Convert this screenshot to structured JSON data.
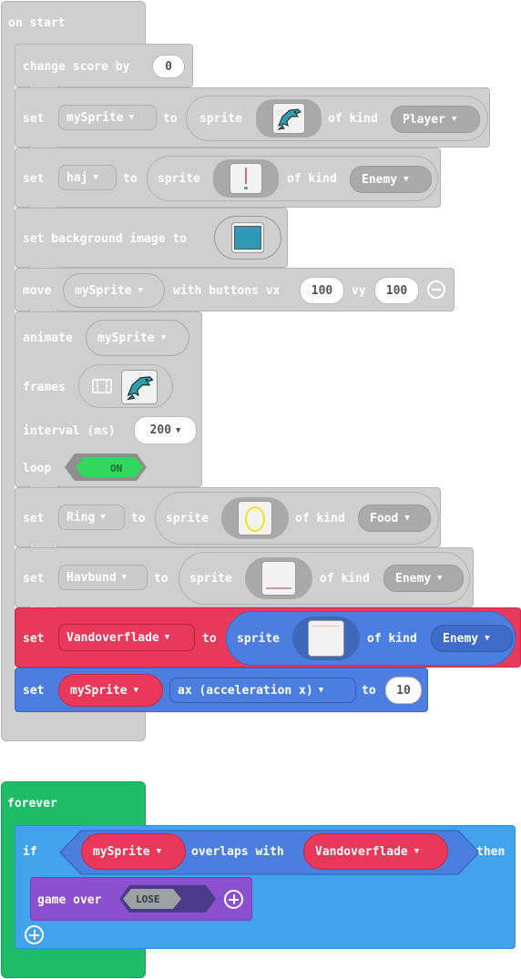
{
  "on_start": {
    "label": "on start",
    "change_score": {
      "label": "change score by",
      "value": "0"
    },
    "set_mysprite": {
      "set": "set",
      "var": "mySprite",
      "to": "to",
      "sprite": "sprite",
      "of_kind": "of kind",
      "kind": "Player",
      "image": "dolphin-sprite"
    },
    "set_haj": {
      "set": "set",
      "var": "haj",
      "to": "to",
      "sprite": "sprite",
      "of_kind": "of kind",
      "kind": "Enemy",
      "image": "shark-sprite"
    },
    "set_background": {
      "label": "set background image to",
      "image": "teal-background"
    },
    "move": {
      "move": "move",
      "var": "mySprite",
      "with_buttons": "with buttons vx",
      "vx": "100",
      "vy_label": "vy",
      "vy": "100"
    },
    "animate": {
      "animate": "animate",
      "var": "mySprite",
      "frames": "frames",
      "interval": "interval (ms)",
      "interval_value": "200",
      "loop": "loop",
      "loop_value": "ON"
    },
    "set_ring": {
      "set": "set",
      "var": "Ring",
      "to": "to",
      "sprite": "sprite",
      "of_kind": "of kind",
      "kind": "Food",
      "image": "yellow-ring"
    },
    "set_havbund": {
      "set": "set",
      "var": "Havbund",
      "to": "to",
      "sprite": "sprite",
      "of_kind": "of kind",
      "kind": "Enemy",
      "image": "seafloor-line"
    },
    "set_vandoverflade": {
      "set": "set",
      "var": "Vandoverflade",
      "to": "to",
      "sprite": "sprite",
      "of_kind": "of kind",
      "kind": "Enemy",
      "image": "water-surface"
    },
    "set_ax": {
      "set": "set",
      "var": "mySprite",
      "prop": "ax (acceleration x)",
      "to": "to",
      "value": "10"
    }
  },
  "forever": {
    "label": "forever",
    "if": "if",
    "left": "mySprite",
    "overlaps": "overlaps with",
    "right": "Vandoverflade",
    "then": "then",
    "game_over": {
      "label": "game over",
      "value": "LOSE"
    }
  },
  "colors": {
    "grey": "#cfcfcf",
    "red": "#e8395a",
    "blue": "#4c7ee0",
    "sky": "#43a2ec",
    "green": "#1fbc67",
    "purple": "#8c4fcf",
    "on_green": "#33d85f"
  }
}
